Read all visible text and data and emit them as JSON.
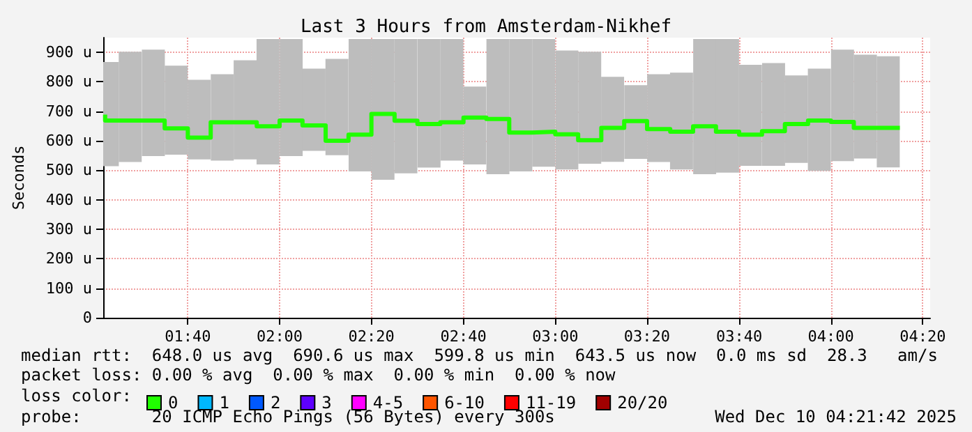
{
  "chart_data": {
    "type": "step",
    "title": "Last 3 Hours from Amsterdam-Nikhef",
    "ylabel": "Seconds",
    "x": [
      1.367,
      1.417,
      1.5,
      1.583,
      1.667,
      1.75,
      1.833,
      1.917,
      2,
      2.083,
      2.167,
      2.25,
      2.333,
      2.417,
      2.5,
      2.583,
      2.667,
      2.75,
      2.833,
      2.917,
      3,
      3.083,
      3.167,
      3.25,
      3.333,
      3.417,
      3.5,
      3.583,
      3.667,
      3.75,
      3.833,
      3.917,
      4,
      4.083,
      4.167,
      4.25
    ],
    "series": [
      {
        "type": "bar",
        "color": "#bdbdbd",
        "x": [
          1.375,
          1.458,
          1.542,
          1.625,
          1.708,
          1.792,
          1.875,
          1.958,
          2.042,
          2.125,
          2.208,
          2.292,
          2.375,
          2.458,
          2.542,
          2.625,
          2.708,
          2.792,
          2.875,
          2.958,
          3.042,
          3.125,
          3.208,
          3.292,
          3.375,
          3.458,
          3.542,
          3.625,
          3.708,
          3.792,
          3.875,
          3.958,
          4.042,
          4.125,
          4.208
        ],
        "base": [
          514,
          528,
          548,
          553,
          537,
          533,
          537,
          520,
          548,
          566,
          551,
          496,
          468,
          490,
          509,
          533,
          520,
          487,
          496,
          512,
          503,
          522,
          529,
          539,
          528,
          503,
          487,
          492,
          515,
          515,
          525,
          498,
          531,
          540,
          510
        ],
        "values": [
          353,
          374,
          361,
          302,
          270,
          293,
          336,
          425,
          397,
          279,
          327,
          449,
          477,
          455,
          436,
          412,
          264,
          458,
          449,
          433,
          403,
          380,
          288,
          250,
          298,
          328,
          458,
          453,
          343,
          349,
          297,
          347,
          378,
          352,
          377
        ]
      },
      {
        "name": "0",
        "color": "#20ff00",
        "values": [
          689,
          669,
          669,
          669,
          642,
          611,
          663,
          663,
          649,
          669,
          652,
          600,
          621,
          691,
          668,
          657,
          663,
          679,
          674,
          628,
          631,
          622,
          602,
          644,
          667,
          640,
          631,
          649,
          631,
          621,
          633,
          657,
          669,
          664,
          644,
          644
        ]
      },
      {
        "name": "1",
        "color": "#00b8ff",
        "values": [
          null,
          null,
          null,
          null,
          null,
          null,
          null,
          null,
          null,
          null,
          null,
          null,
          null,
          null,
          null,
          null,
          null,
          null,
          null,
          null,
          null,
          null,
          null,
          null,
          null,
          null,
          null,
          null,
          null,
          null,
          null,
          null,
          null,
          null,
          null,
          null
        ]
      },
      {
        "name": "2",
        "color": "#0059ff",
        "values": [
          null,
          null,
          null,
          null,
          null,
          null,
          null,
          null,
          null,
          null,
          null,
          null,
          null,
          null,
          null,
          null,
          null,
          null,
          null,
          null,
          null,
          null,
          null,
          null,
          null,
          null,
          null,
          null,
          null,
          null,
          null,
          null,
          null,
          null,
          null,
          null
        ]
      },
      {
        "name": "3",
        "color": "#5e00ff",
        "values": [
          null,
          null,
          null,
          null,
          null,
          null,
          null,
          null,
          null,
          null,
          null,
          null,
          null,
          null,
          null,
          null,
          null,
          null,
          null,
          null,
          null,
          null,
          null,
          null,
          null,
          null,
          null,
          null,
          null,
          null,
          null,
          null,
          null,
          null,
          null,
          null
        ]
      },
      {
        "name": "4-5",
        "color": "#ff00ff",
        "values": [
          null,
          null,
          null,
          null,
          null,
          null,
          null,
          null,
          null,
          null,
          null,
          null,
          null,
          null,
          null,
          null,
          null,
          null,
          null,
          null,
          null,
          null,
          null,
          null,
          null,
          null,
          null,
          null,
          null,
          null,
          null,
          null,
          null,
          null,
          null,
          null
        ]
      },
      {
        "name": "6-10",
        "color": "#ff5500",
        "values": [
          null,
          null,
          null,
          null,
          null,
          null,
          null,
          null,
          null,
          null,
          null,
          null,
          null,
          null,
          null,
          null,
          null,
          null,
          null,
          null,
          null,
          null,
          null,
          null,
          null,
          null,
          null,
          null,
          null,
          null,
          null,
          null,
          null,
          null,
          null,
          null
        ]
      },
      {
        "name": "11-19",
        "color": "#ff0000",
        "values": [
          null,
          null,
          null,
          null,
          null,
          null,
          null,
          null,
          null,
          null,
          null,
          null,
          null,
          null,
          null,
          null,
          null,
          null,
          null,
          null,
          null,
          null,
          null,
          null,
          null,
          null,
          null,
          null,
          null,
          null,
          null,
          null,
          null,
          null,
          null,
          null
        ]
      },
      {
        "name": "20/20",
        "color": "#a10000",
        "values": [
          null,
          null,
          null,
          null,
          null,
          null,
          null,
          null,
          null,
          null,
          null,
          null,
          null,
          null,
          null,
          null,
          null,
          null,
          null,
          null,
          null,
          null,
          null,
          null,
          null,
          null,
          null,
          null,
          null,
          null,
          null,
          null,
          null,
          null,
          null,
          null
        ]
      }
    ],
    "xlim": [
      1.36,
      4.36
    ],
    "xticks": [
      {
        "value": 1.667,
        "label": "01:40"
      },
      {
        "value": 2,
        "label": "02:00"
      },
      {
        "value": 2.333,
        "label": "02:20"
      },
      {
        "value": 2.667,
        "label": "02:40"
      },
      {
        "value": 3,
        "label": "03:00"
      },
      {
        "value": 3.333,
        "label": "03:20"
      },
      {
        "value": 3.667,
        "label": "03:40"
      },
      {
        "value": 4,
        "label": "04:00"
      },
      {
        "value": 4.333,
        "label": "04:20"
      }
    ],
    "ylim": [
      0,
      950
    ],
    "yticks": [
      0,
      {
        "value": 100,
        "label": "100 u"
      },
      {
        "value": 200,
        "label": "200 u"
      },
      {
        "value": 300,
        "label": "300 u"
      },
      {
        "value": 400,
        "label": "400 u"
      },
      {
        "value": 500,
        "label": "500 u"
      },
      {
        "value": 600,
        "label": "600 u"
      },
      {
        "value": 700,
        "label": "700 u"
      },
      {
        "value": 800,
        "label": "800 u"
      },
      {
        "value": 900,
        "label": "900 u"
      }
    ],
    "grid": true,
    "legend": "bottom",
    "marker": "none",
    "line_style": "solid",
    "annotations": [
      "median rtt:  648.0 us avg  690.6 us max  599.8 us min  643.5 us now  0.0 ms sd  28.3   am/s",
      "packet loss: 0.00 % avg  0.00 % max  0.00 % min  0.00 % now",
      "loss color:",
      "probe:       20 ICMP Echo Pings (56 Bytes) every 300s",
      "Wed Dec 10 04:21:42 2025"
    ]
  }
}
